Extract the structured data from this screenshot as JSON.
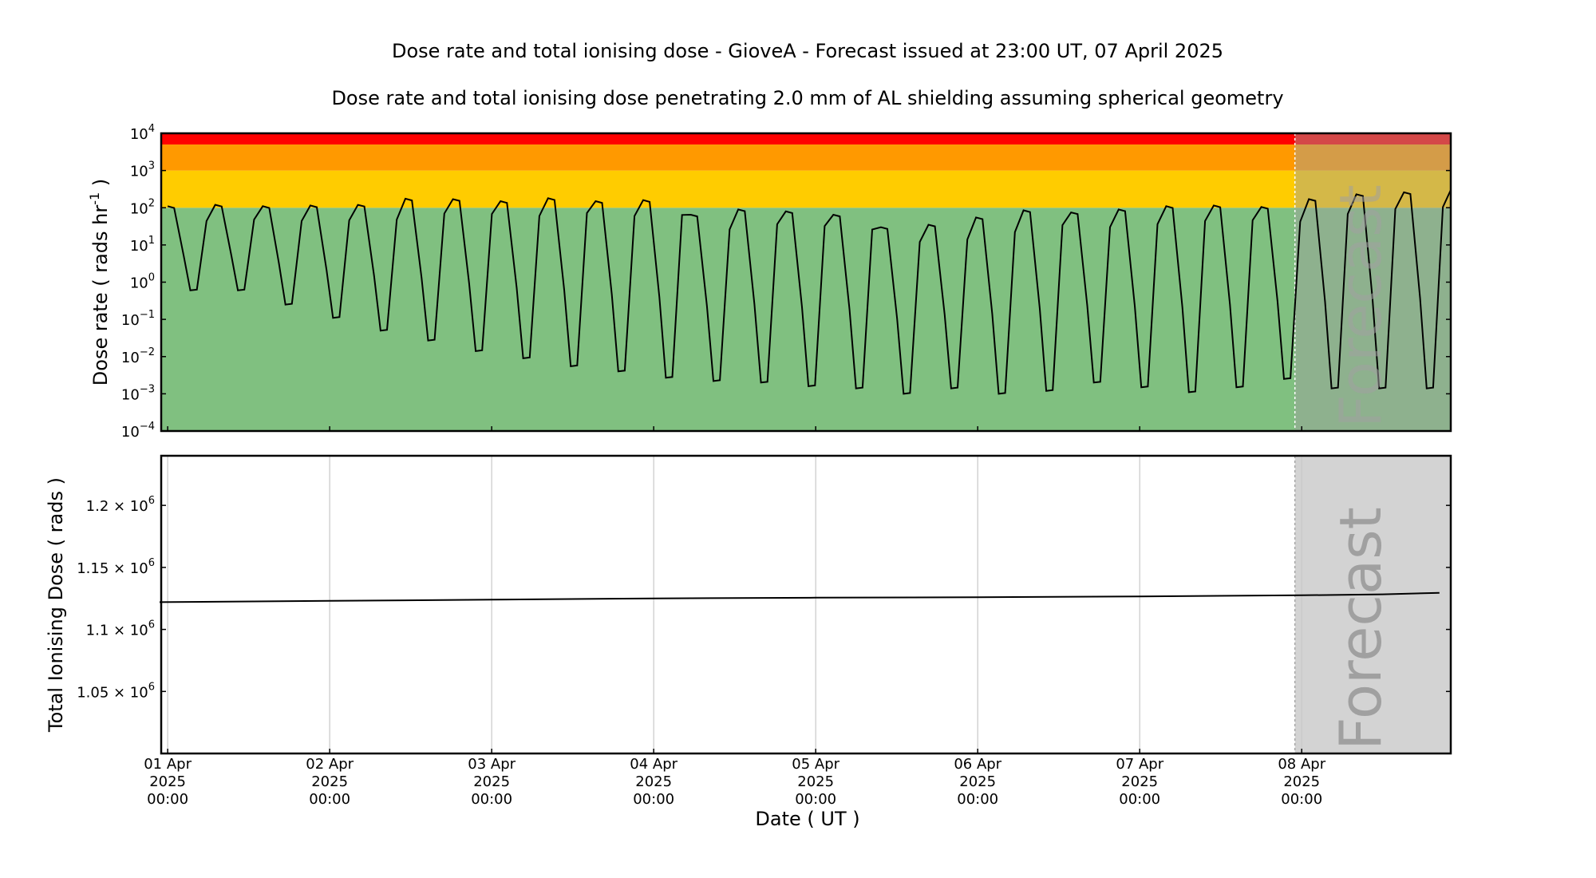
{
  "chart_data": [
    {
      "type": "line",
      "title": "Dose rate and total ionising dose - GioveA - Forecast issued at 23:00 UT, 07 April 2025",
      "subtitle": "Dose rate and total ionising dose penetrating 2.0 mm of AL shielding assuming spherical geometry",
      "ylabel": "Dose rate ( rads hr",
      "ylabel_sup": "-1",
      "ylabel_end": " )",
      "yscale": "log",
      "ylim": [
        0.0001,
        10000
      ],
      "y_ticks": [
        {
          "exp": -4,
          "label_base": "10",
          "label_exp": "−4"
        },
        {
          "exp": -3,
          "label_base": "10",
          "label_exp": "−3"
        },
        {
          "exp": -2,
          "label_base": "10",
          "label_exp": "−2"
        },
        {
          "exp": -1,
          "label_base": "10",
          "label_exp": "−1"
        },
        {
          "exp": 0,
          "label_base": "10",
          "label_exp": "0"
        },
        {
          "exp": 1,
          "label_base": "10",
          "label_exp": "1"
        },
        {
          "exp": 2,
          "label_base": "10",
          "label_exp": "2"
        },
        {
          "exp": 3,
          "label_base": "10",
          "label_exp": "3"
        },
        {
          "exp": 4,
          "label_base": "10",
          "label_exp": "4"
        }
      ],
      "bands": [
        {
          "from": 0.0001,
          "to": 100,
          "color": "#80c080"
        },
        {
          "from": 100,
          "to": 1000,
          "color": "#ffcc00"
        },
        {
          "from": 1000,
          "to": 5000,
          "color": "#ff9900"
        },
        {
          "from": 5000,
          "to": 10000,
          "color": "#ff0000"
        }
      ],
      "series": [
        {
          "color": "#000000",
          "peaks": [
            110,
            120,
            110,
            115,
            120,
            175,
            170,
            150,
            180,
            150,
            160,
            65,
            90,
            80,
            65,
            30,
            35,
            55,
            85,
            75,
            90,
            110,
            115,
            105,
            170,
            230,
            260
          ],
          "troughs": [
            0.6,
            0.6,
            0.25,
            0.11,
            0.05,
            0.027,
            0.014,
            0.009,
            0.0055,
            0.004,
            0.0027,
            0.0022,
            0.002,
            0.0016,
            0.0014,
            0.001,
            0.0014,
            0.001,
            0.0012,
            0.002,
            0.0015,
            0.0011,
            0.0015,
            0.0025,
            0.0014,
            0.0014,
            0.0014
          ]
        }
      ],
      "forecast_label": "Forecast"
    },
    {
      "type": "line",
      "ylabel": "Total Ionising Dose ( rads )",
      "ylim": [
        1000000,
        1240000
      ],
      "y_ticks": [
        {
          "value": 1050000,
          "label_base": "1.05 × 10",
          "label_exp": "6"
        },
        {
          "value": 1100000,
          "label_base": "1.1 × 10",
          "label_exp": "6"
        },
        {
          "value": 1150000,
          "label_base": "1.15 × 10",
          "label_exp": "6"
        },
        {
          "value": 1200000,
          "label_base": "1.2 × 10",
          "label_exp": "6"
        }
      ],
      "series": [
        {
          "color": "#000000",
          "x_days": [
            -0.05,
            1,
            2,
            3,
            4,
            5,
            6,
            7,
            7.5,
            7.85
          ],
          "values": [
            1122000,
            1123000,
            1124000,
            1125000,
            1125600,
            1126000,
            1126600,
            1127500,
            1128300,
            1129500
          ]
        }
      ],
      "xlabel": "Date ( UT )",
      "x_ticks": [
        {
          "day": 0,
          "lines": [
            "01 Apr",
            "2025",
            "00:00"
          ]
        },
        {
          "day": 1,
          "lines": [
            "02 Apr",
            "2025",
            "00:00"
          ]
        },
        {
          "day": 2,
          "lines": [
            "03 Apr",
            "2025",
            "00:00"
          ]
        },
        {
          "day": 3,
          "lines": [
            "04 Apr",
            "2025",
            "00:00"
          ]
        },
        {
          "day": 4,
          "lines": [
            "05 Apr",
            "2025",
            "00:00"
          ]
        },
        {
          "day": 5,
          "lines": [
            "06 Apr",
            "2025",
            "00:00"
          ]
        },
        {
          "day": 6,
          "lines": [
            "07 Apr",
            "2025",
            "00:00"
          ]
        },
        {
          "day": 7,
          "lines": [
            "08 Apr",
            "2025",
            "00:00"
          ]
        }
      ],
      "xlim_days": [
        -0.04,
        7.92
      ],
      "forecast_start_day": 6.958,
      "forecast_label": "Forecast",
      "forecast_color": "#d3d3d3",
      "grid": "x"
    }
  ]
}
